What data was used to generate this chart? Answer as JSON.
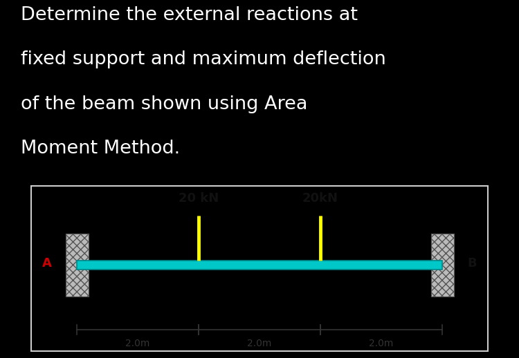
{
  "title_lines": [
    "Determine the external reactions at",
    "fixed support and maximum deflection",
    "of the beam shown using Area",
    "Moment Method."
  ],
  "background_color": "#000000",
  "diagram_bg": "#f0f0f0",
  "title_color": "#ffffff",
  "title_fontsize": 19.5,
  "beam_color": "#00c8c8",
  "load1_label": "20 kN",
  "load2_label": "20kN",
  "load_color": "#ffff00",
  "support_A_label": "A",
  "support_B_label": "B",
  "dim_labels": [
    "2.0m",
    "2.0m",
    "2.0m"
  ]
}
